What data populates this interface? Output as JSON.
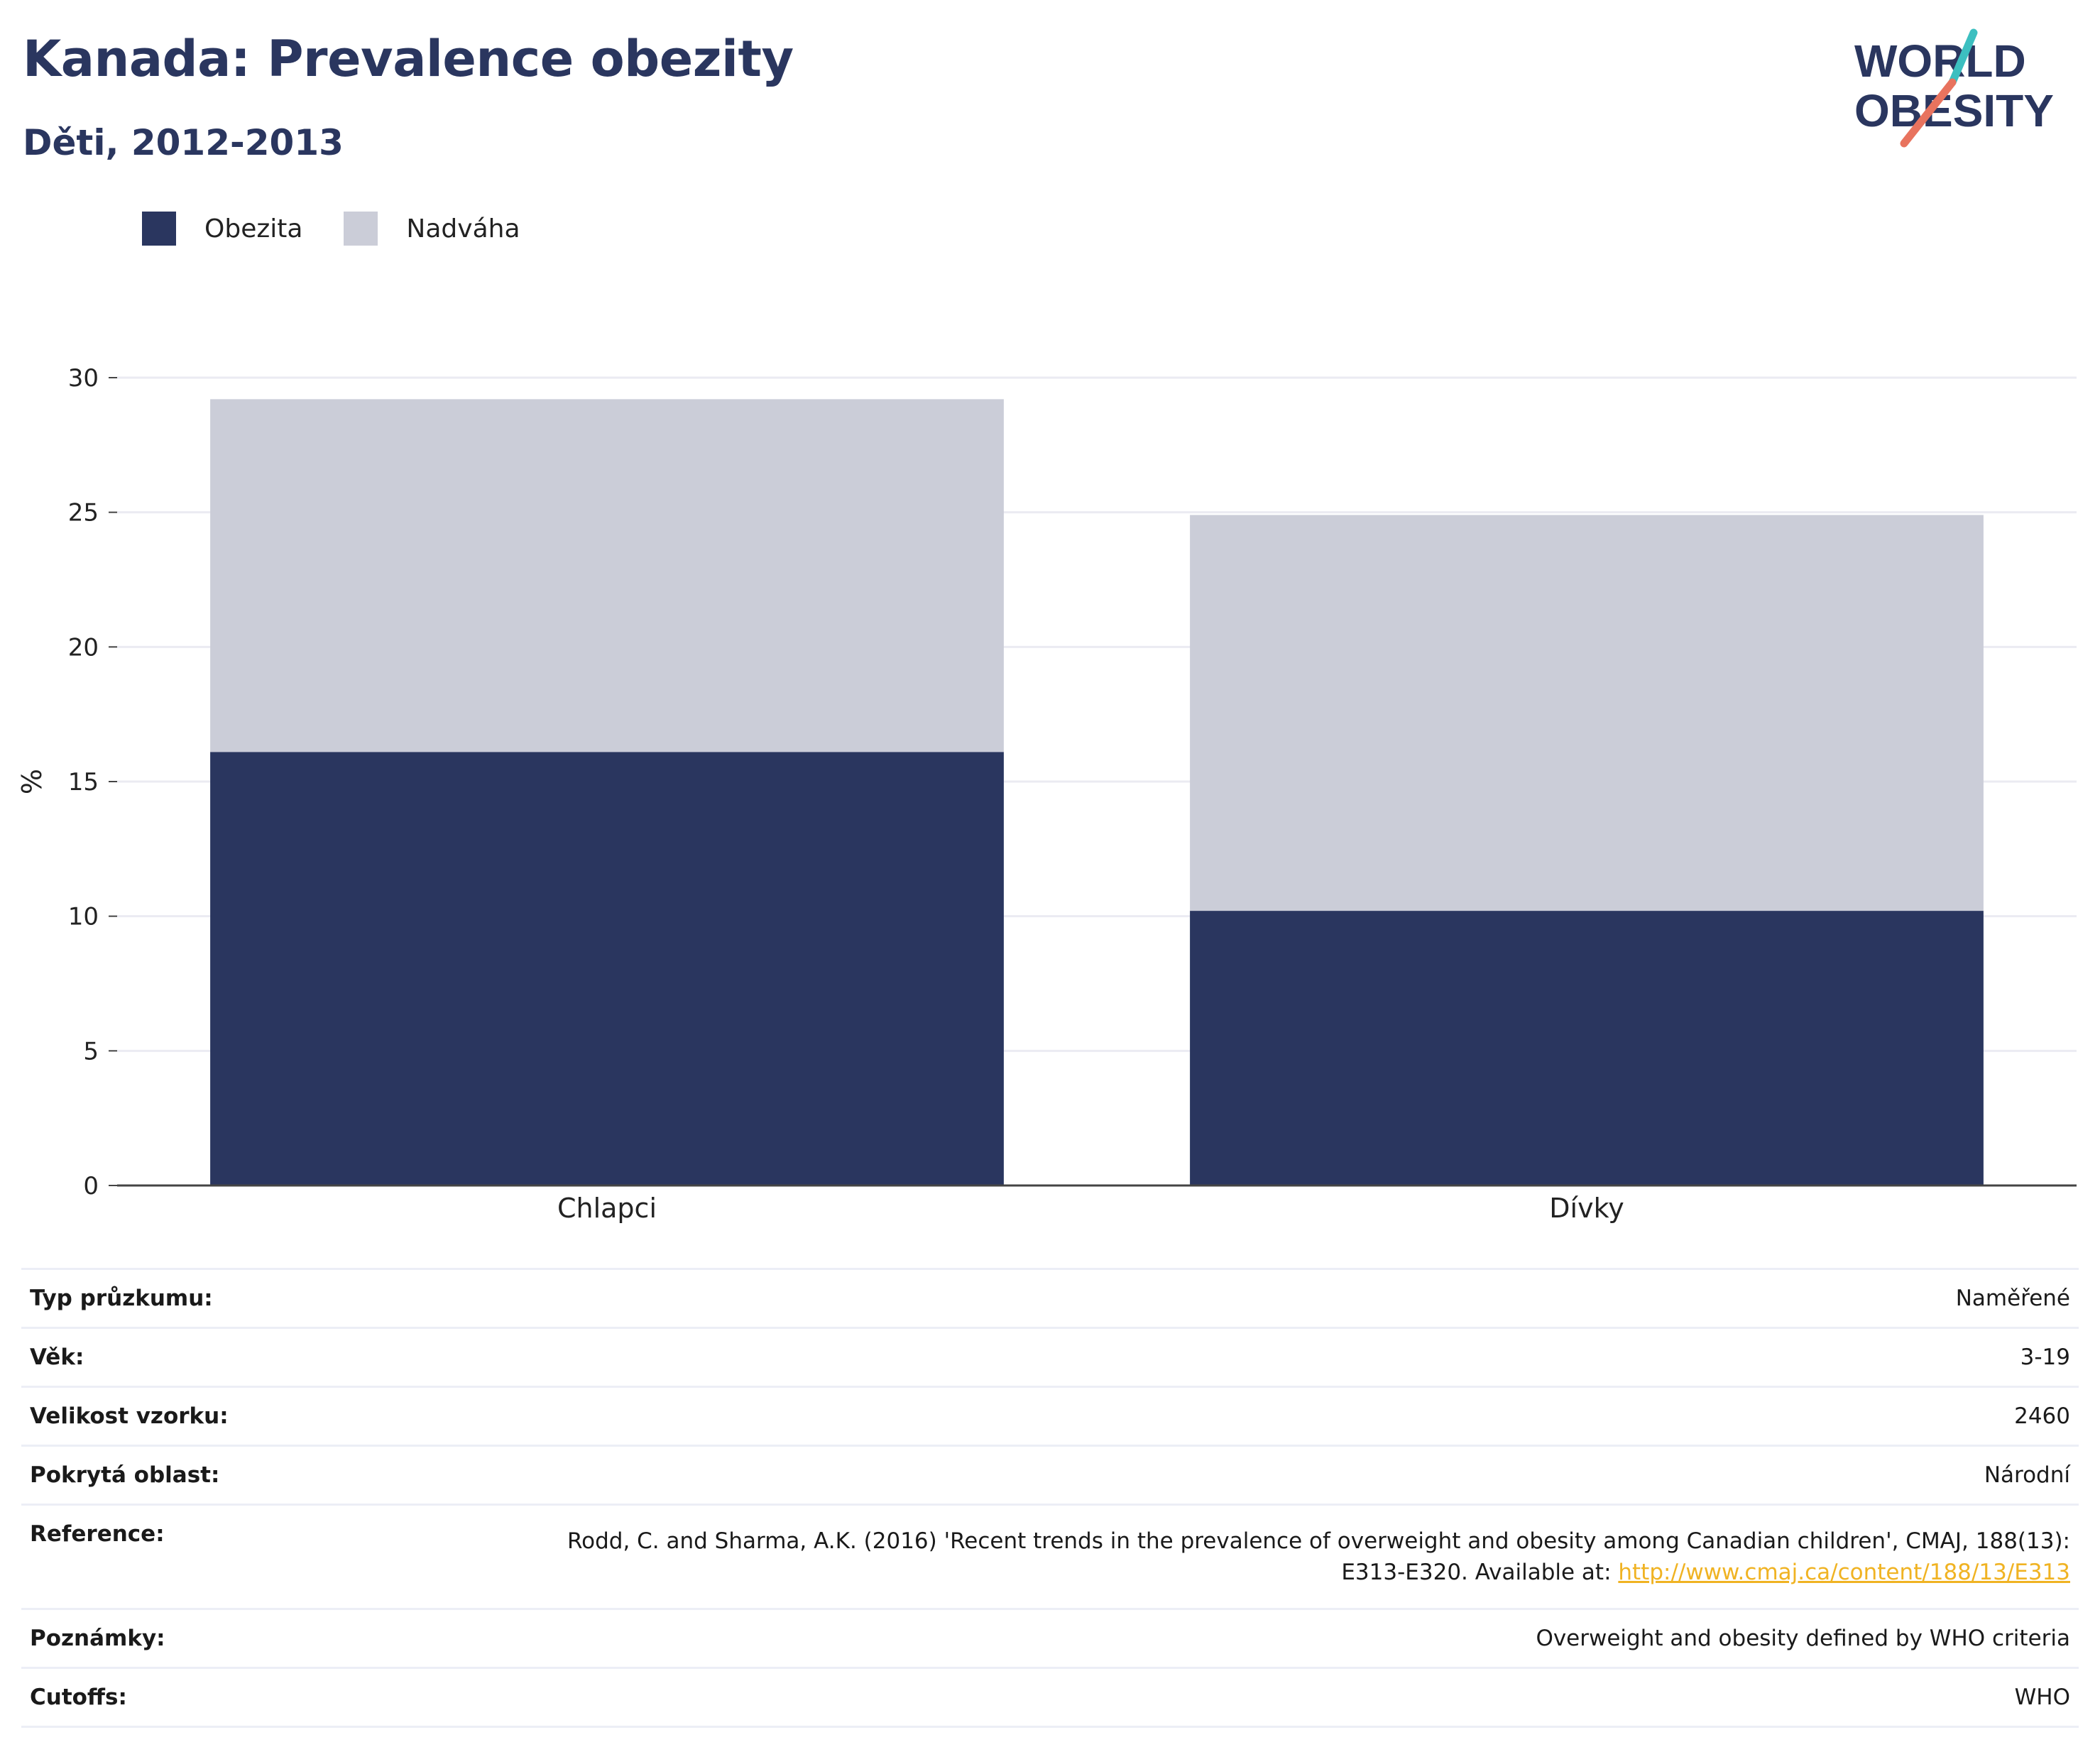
{
  "header": {
    "title": "Kanada: Prevalence obezity",
    "subtitle": "Děti, 2012-2013",
    "logo_line1": "WORLD",
    "logo_line2": "OBESITY"
  },
  "colors": {
    "title": "#2a365f",
    "obesity": "#2a365f",
    "overweight": "#cbcdd8",
    "grid": "#ebebf2",
    "axis": "#444444",
    "link": "#f0b323",
    "logo_teal": "#3cbfc0",
    "logo_coral": "#e8735e"
  },
  "chart_data": {
    "type": "bar",
    "stacked": true,
    "categories": [
      "Chlapci",
      "Dívky"
    ],
    "series": [
      {
        "name": "Obezita",
        "values": [
          16.1,
          10.2
        ],
        "color": "#2a365f"
      },
      {
        "name": "Nadváha",
        "values": [
          13.1,
          14.7
        ],
        "color": "#cbcdd8"
      }
    ],
    "ylabel": "%",
    "xlabel": "",
    "ylim": [
      0,
      30
    ],
    "yticks": [
      0,
      5,
      10,
      15,
      20,
      25,
      30
    ],
    "grid": true,
    "legend_position": "top-left"
  },
  "info": [
    {
      "label": "Typ průzkumu:",
      "value": "Naměřené"
    },
    {
      "label": "Věk:",
      "value": "3-19"
    },
    {
      "label": "Velikost vzorku:",
      "value": "2460"
    },
    {
      "label": "Pokrytá oblast:",
      "value": "Národní"
    },
    {
      "label": "Poznámky:",
      "value": "Overweight and obesity defined by WHO criteria"
    },
    {
      "label": "Cutoffs:",
      "value": "WHO"
    }
  ],
  "reference": {
    "label": "Reference:",
    "text_line1": "Rodd, C. and Sharma, A.K. (2016) 'Recent trends in the prevalence of overweight and obesity among Canadian children', CMAJ, 188(13):",
    "text_line2": "E313-E320. Available at: ",
    "link": "http://www.cmaj.ca/content/188/13/E313"
  }
}
